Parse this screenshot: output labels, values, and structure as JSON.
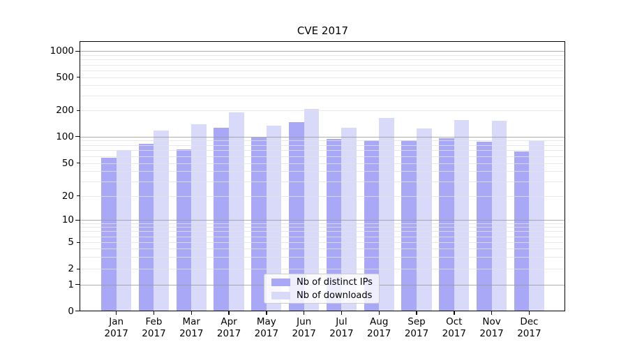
{
  "chart_data": {
    "type": "bar",
    "title": "CVE 2017",
    "categories": [
      "Jan",
      "Feb",
      "Mar",
      "Apr",
      "May",
      "Jun",
      "Jul",
      "Aug",
      "Sep",
      "Oct",
      "Nov",
      "Dec"
    ],
    "category_year": "2017",
    "series": [
      {
        "name": "Nb of distinct IPs",
        "color": "#a8a8f6",
        "values": [
          57,
          83,
          72,
          127,
          98,
          148,
          94,
          90,
          91,
          96,
          87,
          68
        ]
      },
      {
        "name": "Nb of downloads",
        "color": "#d9d9fa",
        "values": [
          70,
          117,
          138,
          190,
          133,
          210,
          126,
          164,
          125,
          155,
          152,
          89
        ]
      }
    ],
    "y_axis": {
      "scale": "symlog",
      "tick_labels": [
        "0",
        "1",
        "2",
        "5",
        "10",
        "20",
        "50",
        "100",
        "200",
        "500",
        "1000"
      ],
      "tick_values": [
        0,
        1,
        2,
        5,
        10,
        20,
        50,
        100,
        200,
        500,
        1000
      ],
      "range_top": 1000
    },
    "x_axis": {
      "year": "2017"
    },
    "legend": {
      "position": "lower-center"
    },
    "grid": true
  }
}
